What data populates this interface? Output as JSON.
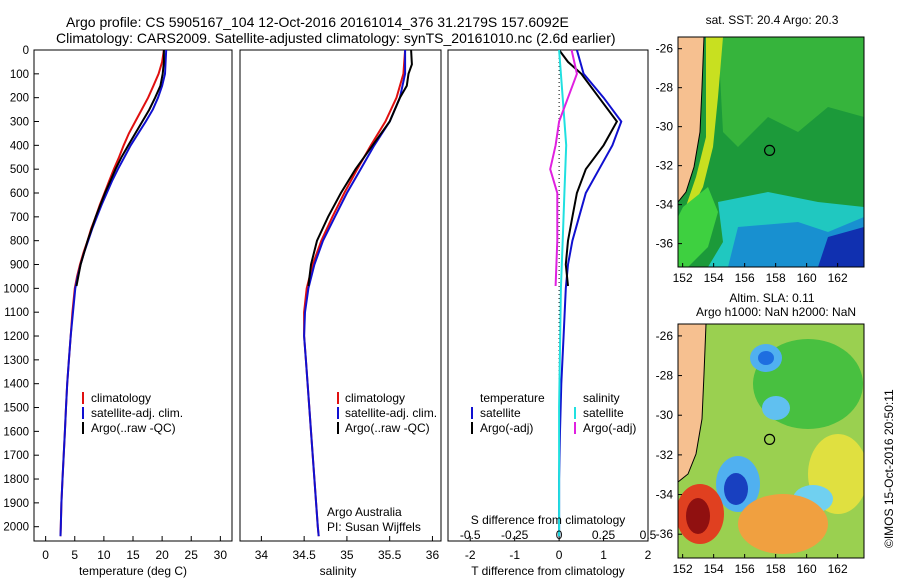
{
  "header": {
    "line1": "Argo profile: CS 5905167_104 12-Oct-2016 20161014_376 31.2179S 157.6092E",
    "line2": "Climatology: CARS2009. Satellite-adjusted climatology: synTS_20161010.nc (2.6d earlier)"
  },
  "colors": {
    "climatology": "#e01010",
    "satellite": "#1010d0",
    "argo": "#000000",
    "salinity_satellite": "#20e0e0",
    "salinity_argo": "#e020e0"
  },
  "depth_axis": {
    "range": [
      0,
      2060
    ],
    "ticks": [
      0,
      100,
      200,
      300,
      400,
      500,
      600,
      700,
      800,
      900,
      1000,
      1100,
      1200,
      1300,
      1400,
      1500,
      1600,
      1700,
      1800,
      1900,
      2000
    ]
  },
  "panels": {
    "temperature": {
      "xlabel": "temperature (deg C)",
      "xlim": [
        -2,
        32
      ],
      "xticks": [
        0,
        5,
        10,
        15,
        20,
        25,
        30
      ],
      "legend": [
        "climatology",
        "satellite-adj. clim.",
        "Argo(..raw -QC)"
      ]
    },
    "salinity": {
      "xlabel": "salinity",
      "xlim": [
        33.75,
        36.1
      ],
      "xticks": [
        "34",
        "34.5",
        "35",
        "35.5",
        "36"
      ],
      "legend": [
        "climatology",
        "satellite-adj. clim.",
        "Argo(..raw -QC)"
      ],
      "note1": "Argo Australia",
      "note2": "PI: Susan Wijffels"
    },
    "difference": {
      "xlabel_t": "T difference from climatology",
      "xlabel_s": "S difference from climatology",
      "xlim_t": [
        -2.5,
        2.0
      ],
      "t_ticks": [
        "-2",
        "-1",
        "0",
        "1",
        "2"
      ],
      "s_ticks": [
        "-0.5",
        "-0.25",
        "0",
        "0.25",
        "0.5"
      ],
      "legend_temp_title": "temperature",
      "legend_sal_title": "salinity",
      "legend_temp": [
        "satellite",
        "Argo(-adj)"
      ],
      "legend_sal": [
        "satellite",
        "Argo(-adj)"
      ]
    }
  },
  "maps": {
    "sst": {
      "title": "sat. SST: 20.4  Argo: 20.3",
      "lat_ticks": [
        "-26",
        "-28",
        "-30",
        "-32",
        "-34",
        "-36"
      ],
      "lon_ticks": [
        "152",
        "154",
        "156",
        "158",
        "160",
        "162"
      ]
    },
    "sla": {
      "title1": "Altim. SLA: 0.11",
      "title2": "Argo h1000: NaN h2000: NaN",
      "lat_ticks": [
        "-26",
        "-28",
        "-30",
        "-32",
        "-34",
        "-36"
      ],
      "lon_ticks": [
        "152",
        "154",
        "156",
        "158",
        "160",
        "162"
      ]
    },
    "float_position": {
      "lat": -31.2179,
      "lon": 157.6092
    }
  },
  "footer": "©IMOS 15-Oct-2016 20:50:11",
  "chart_data": [
    {
      "type": "line",
      "title": "",
      "xlabel": "temperature (deg C)",
      "ylabel": "",
      "ylim": [
        2060,
        0
      ],
      "series": [
        {
          "name": "climatology",
          "points": [
            [
              20.3,
              0
            ],
            [
              20.0,
              50
            ],
            [
              19.4,
              100
            ],
            [
              18.5,
              150
            ],
            [
              17.6,
              200
            ],
            [
              16.5,
              250
            ],
            [
              15.4,
              300
            ],
            [
              14.3,
              350
            ],
            [
              13.4,
              400
            ],
            [
              12.6,
              450
            ],
            [
              11.7,
              500
            ],
            [
              10.9,
              550
            ],
            [
              10.1,
              600
            ],
            [
              9.3,
              650
            ],
            [
              8.6,
              700
            ],
            [
              7.8,
              750
            ],
            [
              7.2,
              800
            ],
            [
              6.5,
              850
            ],
            [
              5.9,
              900
            ],
            [
              5.4,
              950
            ],
            [
              5.0,
              1000
            ],
            [
              4.6,
              1100
            ],
            [
              4.3,
              1200
            ],
            [
              4.0,
              1300
            ],
            [
              3.7,
              1400
            ],
            [
              3.5,
              1500
            ],
            [
              3.3,
              1600
            ],
            [
              3.1,
              1700
            ],
            [
              2.9,
              1800
            ],
            [
              2.7,
              1900
            ],
            [
              2.6,
              2000
            ],
            [
              2.55,
              2040
            ]
          ]
        },
        {
          "name": "satellite-adj. clim.",
          "points": [
            [
              20.7,
              0
            ],
            [
              20.6,
              50
            ],
            [
              20.5,
              100
            ],
            [
              20.0,
              150
            ],
            [
              19.3,
              200
            ],
            [
              18.4,
              250
            ],
            [
              17.2,
              300
            ],
            [
              15.9,
              350
            ],
            [
              14.6,
              400
            ],
            [
              13.5,
              450
            ],
            [
              12.4,
              500
            ],
            [
              11.4,
              550
            ],
            [
              10.5,
              600
            ],
            [
              9.6,
              650
            ],
            [
              8.8,
              700
            ],
            [
              8.0,
              750
            ],
            [
              7.3,
              800
            ],
            [
              6.6,
              850
            ],
            [
              6.0,
              900
            ],
            [
              5.5,
              950
            ],
            [
              5.1,
              1000
            ],
            [
              4.7,
              1100
            ],
            [
              4.3,
              1200
            ],
            [
              4.0,
              1300
            ],
            [
              3.7,
              1400
            ],
            [
              3.5,
              1500
            ],
            [
              3.3,
              1600
            ],
            [
              3.1,
              1700
            ],
            [
              2.9,
              1800
            ],
            [
              2.7,
              1900
            ],
            [
              2.6,
              2000
            ],
            [
              2.55,
              2040
            ]
          ]
        },
        {
          "name": "Argo(..raw -QC)",
          "points": [
            [
              20.3,
              0
            ],
            [
              20.3,
              50
            ],
            [
              20.1,
              100
            ],
            [
              19.7,
              150
            ],
            [
              18.8,
              200
            ],
            [
              17.8,
              250
            ],
            [
              16.6,
              300
            ],
            [
              15.4,
              350
            ],
            [
              14.2,
              400
            ],
            [
              13.0,
              450
            ],
            [
              12.0,
              500
            ],
            [
              11.1,
              550
            ],
            [
              10.2,
              600
            ],
            [
              9.4,
              650
            ],
            [
              8.6,
              700
            ],
            [
              7.9,
              750
            ],
            [
              7.2,
              800
            ],
            [
              6.6,
              850
            ],
            [
              6.0,
              900
            ],
            [
              5.6,
              950
            ],
            [
              5.3,
              990
            ]
          ]
        }
      ]
    },
    {
      "type": "line",
      "title": "",
      "xlabel": "salinity",
      "ylabel": "",
      "ylim": [
        2060,
        0
      ],
      "series": [
        {
          "name": "climatology",
          "points": [
            [
              35.68,
              0
            ],
            [
              35.66,
              100
            ],
            [
              35.58,
              200
            ],
            [
              35.45,
              300
            ],
            [
              35.28,
              400
            ],
            [
              35.12,
              500
            ],
            [
              34.97,
              600
            ],
            [
              34.83,
              700
            ],
            [
              34.7,
              800
            ],
            [
              34.6,
              900
            ],
            [
              34.53,
              1000
            ],
            [
              34.5,
              1100
            ],
            [
              34.5,
              1200
            ],
            [
              34.52,
              1300
            ],
            [
              34.54,
              1400
            ],
            [
              34.56,
              1500
            ],
            [
              34.58,
              1600
            ],
            [
              34.6,
              1700
            ],
            [
              34.62,
              1800
            ],
            [
              34.64,
              1900
            ],
            [
              34.66,
              2000
            ],
            [
              34.67,
              2040
            ]
          ]
        },
        {
          "name": "satellite-adj. clim.",
          "points": [
            [
              35.68,
              0
            ],
            [
              35.68,
              100
            ],
            [
              35.62,
              200
            ],
            [
              35.5,
              300
            ],
            [
              35.32,
              400
            ],
            [
              35.16,
              500
            ],
            [
              35.0,
              600
            ],
            [
              34.86,
              700
            ],
            [
              34.72,
              800
            ],
            [
              34.62,
              900
            ],
            [
              34.55,
              1000
            ],
            [
              34.51,
              1100
            ],
            [
              34.5,
              1200
            ],
            [
              34.52,
              1300
            ],
            [
              34.54,
              1400
            ],
            [
              34.56,
              1500
            ],
            [
              34.58,
              1600
            ],
            [
              34.6,
              1700
            ],
            [
              34.62,
              1800
            ],
            [
              34.64,
              1900
            ],
            [
              34.66,
              2000
            ],
            [
              34.67,
              2040
            ]
          ]
        },
        {
          "name": "Argo(..raw -QC)",
          "points": [
            [
              35.75,
              0
            ],
            [
              35.76,
              60
            ],
            [
              35.72,
              100
            ],
            [
              35.7,
              150
            ],
            [
              35.62,
              200
            ],
            [
              35.5,
              300
            ],
            [
              35.3,
              400
            ],
            [
              35.1,
              500
            ],
            [
              34.93,
              600
            ],
            [
              34.78,
              700
            ],
            [
              34.65,
              800
            ],
            [
              34.58,
              900
            ],
            [
              34.55,
              990
            ]
          ]
        }
      ]
    },
    {
      "type": "line",
      "title": "",
      "xlabel": "T difference from climatology",
      "ylabel": "",
      "ylim": [
        2060,
        0
      ],
      "series": [
        {
          "name": "temperature satellite",
          "points": [
            [
              0.4,
              0
            ],
            [
              0.55,
              100
            ],
            [
              1.0,
              200
            ],
            [
              1.4,
              300
            ],
            [
              1.2,
              400
            ],
            [
              0.9,
              500
            ],
            [
              0.6,
              600
            ],
            [
              0.45,
              700
            ],
            [
              0.3,
              800
            ],
            [
              0.2,
              900
            ],
            [
              0.15,
              1000
            ],
            [
              0.1,
              1200
            ],
            [
              0.05,
              1400
            ],
            [
              0.02,
              1600
            ],
            [
              0.0,
              1800
            ],
            [
              0.0,
              2040
            ]
          ]
        },
        {
          "name": "temperature Argo(-adj)",
          "points": [
            [
              0.0,
              0
            ],
            [
              0.2,
              50
            ],
            [
              0.5,
              100
            ],
            [
              0.9,
              200
            ],
            [
              1.3,
              300
            ],
            [
              1.0,
              400
            ],
            [
              0.6,
              500
            ],
            [
              0.4,
              600
            ],
            [
              0.3,
              700
            ],
            [
              0.2,
              800
            ],
            [
              0.15,
              900
            ],
            [
              0.2,
              990
            ]
          ]
        },
        {
          "name": "salinity satellite",
          "points": [
            [
              0.0,
              0
            ],
            [
              0.02,
              200
            ],
            [
              0.04,
              400
            ],
            [
              0.03,
              600
            ],
            [
              0.02,
              800
            ],
            [
              0.01,
              1000
            ],
            [
              0.0,
              1500
            ],
            [
              0.0,
              2040
            ]
          ]
        },
        {
          "name": "salinity Argo(-adj)",
          "points": [
            [
              0.07,
              0
            ],
            [
              0.1,
              100
            ],
            [
              0.05,
              200
            ],
            [
              0.0,
              300
            ],
            [
              -0.02,
              400
            ],
            [
              -0.05,
              500
            ],
            [
              -0.01,
              600
            ],
            [
              -0.01,
              800
            ],
            [
              -0.02,
              990
            ]
          ]
        }
      ]
    }
  ]
}
